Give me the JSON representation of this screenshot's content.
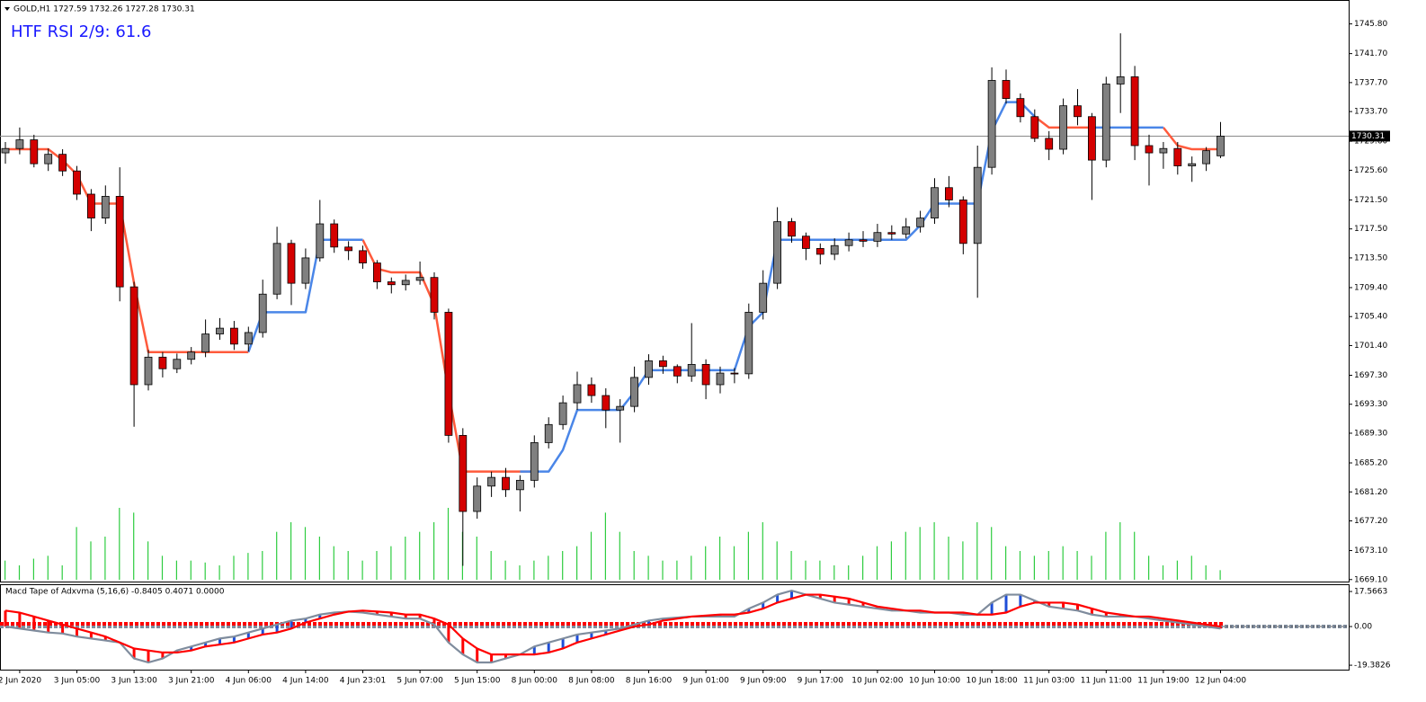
{
  "chart_data": [
    {
      "type": "candlestick",
      "title": "GOLD,H1  1727.59 1732.26 1727.28 1730.31",
      "annotation": "HTF RSI 2/9: 61.6",
      "categories": [
        null,
        "2 Jun 2020",
        null,
        null,
        null,
        "3 Jun 05:00",
        null,
        null,
        null,
        "3 Jun 13:00",
        null,
        null,
        null,
        "3 Jun 21:00",
        null,
        null,
        null,
        "4 Jun 06:00",
        null,
        null,
        null,
        "4 Jun 14:00",
        null,
        null,
        null,
        "4 Jun 23:01",
        null,
        null,
        null,
        "5 Jun 07:00",
        null,
        null,
        null,
        "5 Jun 15:00",
        null,
        null,
        null,
        "8 Jun 00:00",
        null,
        null,
        null,
        "8 Jun 08:00",
        null,
        null,
        null,
        "8 Jun 16:00",
        null,
        null,
        null,
        "9 Jun 01:00",
        null,
        null,
        null,
        "9 Jun 09:00",
        null,
        null,
        null,
        "9 Jun 17:00",
        null,
        null,
        null,
        "10 Jun 02:00",
        null,
        null,
        null,
        "10 Jun 10:00",
        null,
        null,
        null,
        "10 Jun 18:00",
        null,
        null,
        null,
        "11 Jun 03:00",
        null,
        null,
        null,
        "11 Jun 11:00",
        null,
        null,
        null,
        "11 Jun 19:00",
        null,
        null,
        null,
        "12 Jun 04:00"
      ],
      "open": [
        1728.0,
        1728.6,
        1729.8,
        1726.5,
        1727.8,
        1725.5,
        1722.3,
        1719.0,
        1722.0,
        1709.5,
        1696.0,
        1699.8,
        1698.2,
        1699.5,
        1700.5,
        1703.0,
        1703.8,
        1701.6,
        1703.2,
        1708.5,
        1715.5,
        1710.0,
        1713.5,
        1718.2,
        1715.0,
        1714.5,
        1712.8,
        1710.2,
        1709.8,
        1710.4,
        1710.8,
        1706.0,
        1689.0,
        1678.5,
        1682.0,
        1683.2,
        1681.5,
        1682.8,
        1688.0,
        1690.5,
        1693.5,
        1696.0,
        1694.5,
        1692.5,
        1693.0,
        1697.0,
        1699.3,
        1698.5,
        1697.2,
        1698.8,
        1696.0,
        1697.6,
        1697.5,
        1706.0,
        1710.0,
        1718.5,
        1716.5,
        1714.8,
        1714.0,
        1715.2,
        1716.0,
        1715.8,
        1717.0,
        1716.8,
        1717.8,
        1719.0,
        1723.2,
        1721.5,
        1715.5,
        1726.0,
        1738.0,
        1735.5,
        1733.0,
        1730.0,
        1728.5,
        1734.5,
        1733.0,
        1727.0,
        1737.5,
        1738.5,
        1729.0,
        1728.0,
        1728.6,
        1726.2,
        1726.5,
        1727.59
      ],
      "high": [
        1729.5,
        1731.5,
        1730.5,
        1728.6,
        1728.5,
        1726.2,
        1723.0,
        1723.5,
        1726.0,
        1710.2,
        1700.8,
        1700.5,
        1700.3,
        1701.2,
        1705.0,
        1705.2,
        1704.8,
        1704.0,
        1710.5,
        1717.8,
        1716.0,
        1714.8,
        1721.5,
        1718.8,
        1715.8,
        1715.2,
        1713.2,
        1710.8,
        1711.2,
        1713.0,
        1711.5,
        1706.5,
        1690.0,
        1683.2,
        1684.0,
        1684.5,
        1683.5,
        1689.0,
        1691.5,
        1694.5,
        1697.8,
        1697.0,
        1695.5,
        1694.0,
        1698.5,
        1700.2,
        1700.0,
        1698.8,
        1704.5,
        1699.5,
        1698.5,
        1698.3,
        1707.2,
        1711.8,
        1720.5,
        1719.0,
        1717.0,
        1715.5,
        1716.2,
        1717.0,
        1717.2,
        1718.2,
        1718.0,
        1719.0,
        1720.0,
        1724.5,
        1724.8,
        1722.0,
        1729.0,
        1739.8,
        1739.5,
        1736.2,
        1734.0,
        1731.0,
        1735.5,
        1736.8,
        1733.5,
        1738.5,
        1744.5,
        1740.0,
        1730.5,
        1729.5,
        1729.5,
        1727.5,
        1728.8,
        1732.26
      ],
      "low": [
        1726.5,
        1727.8,
        1726.0,
        1725.5,
        1724.8,
        1721.5,
        1717.2,
        1718.2,
        1707.5,
        1690.2,
        1695.2,
        1697.0,
        1697.6,
        1698.8,
        1699.8,
        1702.2,
        1700.8,
        1700.6,
        1702.5,
        1707.8,
        1707.0,
        1709.2,
        1713.0,
        1714.2,
        1713.2,
        1712.0,
        1709.2,
        1708.6,
        1709.0,
        1709.8,
        1705.0,
        1688.0,
        1671.0,
        1677.5,
        1680.5,
        1680.5,
        1678.5,
        1681.8,
        1687.2,
        1689.8,
        1692.5,
        1693.5,
        1690.0,
        1688.0,
        1692.2,
        1696.0,
        1697.5,
        1696.2,
        1696.4,
        1694.0,
        1694.8,
        1696.2,
        1696.8,
        1705.0,
        1709.2,
        1715.6,
        1713.2,
        1712.6,
        1713.2,
        1714.4,
        1715.0,
        1715.0,
        1716.0,
        1716.2,
        1717.0,
        1718.2,
        1720.5,
        1714.0,
        1708.0,
        1725.0,
        1734.8,
        1732.2,
        1729.5,
        1727.0,
        1727.8,
        1731.8,
        1721.5,
        1726.0,
        1733.5,
        1727.0,
        1723.5,
        1725.8,
        1725.0,
        1724.0,
        1725.5,
        1727.28
      ],
      "close": [
        1728.6,
        1729.8,
        1726.5,
        1727.8,
        1725.5,
        1722.3,
        1719.0,
        1722.0,
        1709.5,
        1696.0,
        1699.8,
        1698.2,
        1699.5,
        1700.5,
        1703.0,
        1703.8,
        1701.6,
        1703.2,
        1708.5,
        1715.5,
        1710.0,
        1713.5,
        1718.2,
        1715.0,
        1714.5,
        1712.8,
        1710.2,
        1709.8,
        1710.4,
        1710.8,
        1706.0,
        1689.0,
        1678.5,
        1682.0,
        1683.2,
        1681.5,
        1682.8,
        1688.0,
        1690.5,
        1693.5,
        1696.0,
        1694.5,
        1692.5,
        1693.0,
        1697.0,
        1699.3,
        1698.5,
        1697.2,
        1698.8,
        1696.0,
        1697.6,
        1697.5,
        1706.0,
        1710.0,
        1718.5,
        1716.5,
        1714.8,
        1714.0,
        1715.2,
        1716.0,
        1715.8,
        1717.0,
        1716.8,
        1717.8,
        1719.0,
        1723.2,
        1721.5,
        1715.5,
        1726.0,
        1738.0,
        1735.5,
        1733.0,
        1730.0,
        1728.5,
        1734.5,
        1733.0,
        1727.0,
        1737.5,
        1738.5,
        1729.0,
        1728.0,
        1728.6,
        1726.2,
        1726.5,
        1728.3,
        1730.31
      ],
      "up_color": "#808080",
      "down_color": "#d40000",
      "lines": [
        {
          "color": "#ff5a3c",
          "values": [
            1728.5,
            1728.5,
            1728.5,
            1728.5,
            1727,
            1725,
            1721,
            1721,
            1721,
            1710,
            1700.5,
            1700.5,
            1700.5,
            1700.5,
            1700.5,
            1700.5,
            1700.5,
            1700.5,
            null,
            null,
            null,
            null,
            null,
            null,
            null,
            1716,
            1712,
            1711.5,
            1711.5,
            1711.5,
            1707,
            1695,
            1684,
            1684,
            1684,
            1684,
            1684,
            1684,
            null,
            null,
            null,
            null,
            null,
            null,
            null,
            null,
            null,
            null,
            null,
            null,
            null,
            null,
            null,
            null,
            null,
            null,
            null,
            null,
            null,
            null,
            null,
            null,
            null,
            null,
            null,
            null,
            null,
            null,
            null,
            null,
            null,
            null,
            1733,
            1731.5,
            1731.5,
            1731.5,
            1731.5,
            null,
            null,
            null,
            null,
            1731.5,
            1729,
            1728.5,
            1728.5,
            1728.5
          ]
        },
        {
          "color": "#4a86e8",
          "values": [
            null,
            null,
            null,
            null,
            null,
            null,
            null,
            null,
            null,
            null,
            null,
            null,
            null,
            null,
            null,
            null,
            null,
            1700.5,
            1706,
            1706,
            1706,
            1706,
            1716,
            1716,
            1716,
            1716,
            null,
            null,
            null,
            null,
            null,
            null,
            null,
            null,
            null,
            null,
            1684,
            1684,
            1684,
            1687,
            1692.5,
            1692.5,
            1692.5,
            1692.5,
            1695,
            1698,
            1698,
            1698,
            1698,
            1698,
            1698,
            1698,
            1704,
            1706,
            1716,
            1716,
            1716,
            1716,
            1716,
            1716,
            1716,
            1716,
            1716,
            1716,
            1718,
            1721,
            1721,
            1721,
            1721,
            1731,
            1735,
            1735,
            1733,
            null,
            null,
            null,
            1731.5,
            1731.5,
            1731.5,
            1731.5,
            1731.5,
            1731.5,
            null,
            null,
            null,
            null
          ]
        }
      ],
      "volume": {
        "color": "#2ecc40",
        "values": [
          20,
          15,
          22,
          25,
          15,
          55,
          40,
          45,
          75,
          70,
          40,
          25,
          20,
          20,
          18,
          15,
          25,
          28,
          30,
          50,
          60,
          55,
          45,
          35,
          30,
          20,
          30,
          35,
          45,
          50,
          60,
          75,
          50,
          45,
          30,
          20,
          15,
          20,
          25,
          30,
          35,
          50,
          70,
          50,
          30,
          25,
          20,
          20,
          25,
          35,
          45,
          35,
          50,
          60,
          40,
          30,
          20,
          20,
          15,
          15,
          25,
          35,
          40,
          50,
          55,
          60,
          45,
          40,
          60,
          55,
          35,
          30,
          25,
          30,
          35,
          30,
          25,
          50,
          60,
          50,
          25,
          15,
          20,
          25,
          15,
          10
        ]
      },
      "last_price": 1730.31,
      "ylim": [
        1668.7,
        1749.1
      ],
      "yticks": [
        {
          "value": 1745.8,
          "label": "1745.80"
        },
        {
          "value": 1741.7,
          "label": "1741.70"
        },
        {
          "value": 1737.7,
          "label": "1737.70"
        },
        {
          "value": 1733.7,
          "label": "1733.70"
        },
        {
          "value": 1729.6,
          "label": "1729.60"
        },
        {
          "value": 1725.6,
          "label": "1725.60"
        },
        {
          "value": 1721.5,
          "label": "1721.50"
        },
        {
          "value": 1717.5,
          "label": "1717.50"
        },
        {
          "value": 1713.5,
          "label": "1713.50"
        },
        {
          "value": 1709.4,
          "label": "1709.40"
        },
        {
          "value": 1705.4,
          "label": "1705.40"
        },
        {
          "value": 1701.4,
          "label": "1701.40"
        },
        {
          "value": 1697.3,
          "label": "1697.30"
        },
        {
          "value": 1693.3,
          "label": "1693.30"
        },
        {
          "value": 1689.3,
          "label": "1689.30"
        },
        {
          "value": 1685.2,
          "label": "1685.20"
        },
        {
          "value": 1681.2,
          "label": "1681.20"
        },
        {
          "value": 1677.2,
          "label": "1677.20"
        },
        {
          "value": 1673.1,
          "label": "1673.10"
        },
        {
          "value": 1669.1,
          "label": "1669.10"
        }
      ]
    },
    {
      "type": "macd",
      "title": "Macd Tape of Adxvma (5,16,6) -0.8405 0.4071 0.0000",
      "macd": {
        "color": "#7f8c9d",
        "values": [
          0,
          -1,
          -2,
          -3,
          -3.5,
          -5,
          -6,
          -7,
          -8,
          -16,
          -18,
          -16,
          -12,
          -10,
          -8,
          -6,
          -5,
          -3,
          -1,
          1,
          3,
          4,
          6,
          7,
          7.5,
          7,
          6,
          5,
          4,
          4,
          1,
          -8,
          -14,
          -18,
          -18,
          -16,
          -14,
          -10,
          -8,
          -6,
          -4,
          -3,
          -2,
          -1,
          1,
          3,
          4,
          4.5,
          5,
          5,
          5,
          5,
          9,
          12,
          16,
          18,
          16,
          14,
          12,
          11,
          10,
          9,
          8,
          8,
          7,
          7,
          7,
          6,
          6,
          12,
          16,
          16,
          13,
          10,
          9,
          8,
          6,
          5,
          5,
          5,
          4,
          3,
          2,
          1,
          0,
          -1
        ]
      },
      "signal": {
        "color": "#ff0000",
        "values": [
          8,
          7,
          5,
          3,
          1,
          -1,
          -3,
          -5,
          -8,
          -11,
          -12,
          -13,
          -13,
          -12,
          -10,
          -9,
          -8,
          -6,
          -4,
          -3,
          -1,
          2,
          4,
          6,
          7.5,
          8,
          7.5,
          7,
          6,
          6,
          4,
          1,
          -6,
          -11,
          -14,
          -14,
          -14,
          -14,
          -13,
          -11,
          -8,
          -6,
          -4,
          -2,
          0,
          1,
          3,
          4,
          5,
          5.5,
          6,
          6,
          7,
          9,
          12,
          14,
          16,
          16,
          15,
          14,
          12,
          10,
          9,
          8,
          8,
          7,
          7,
          7,
          6,
          6,
          7,
          10,
          12,
          12,
          12,
          11,
          9,
          7,
          6,
          5,
          5,
          4,
          3,
          2,
          1,
          0
        ]
      },
      "up_color": "#1e4ed8",
      "down_color": "#ff0000",
      "ylim": [
        -21.6,
        21.2
      ],
      "yticks": [
        17.5663,
        {
          "value": 0,
          "label": "0.00"
        },
        -19.3826
      ]
    }
  ]
}
